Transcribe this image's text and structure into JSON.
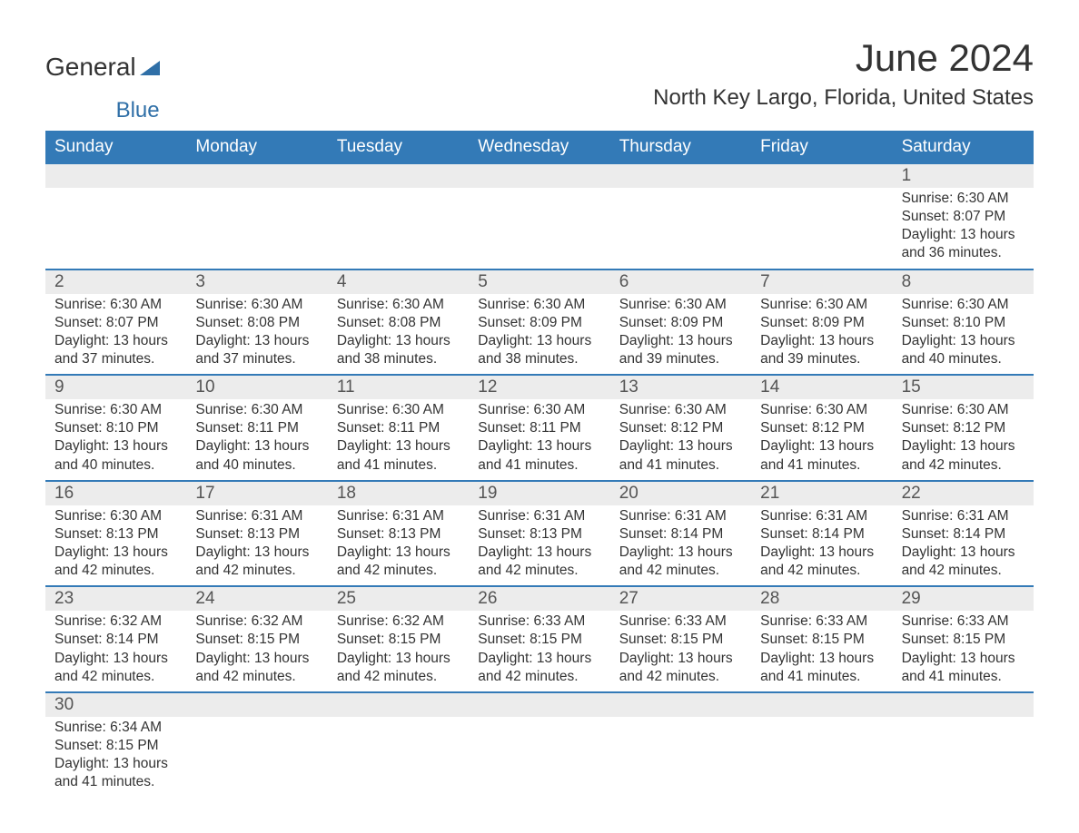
{
  "logo": {
    "text1": "General",
    "text2": "Blue"
  },
  "title": "June 2024",
  "subtitle": "North Key Largo, Florida, United States",
  "colors": {
    "header_bg": "#337ab7",
    "header_text": "#ffffff",
    "daynum_bg": "#ececec",
    "rule": "#337ab7",
    "text": "#333333",
    "logo_blue": "#2f6fa7"
  },
  "day_headers": [
    "Sunday",
    "Monday",
    "Tuesday",
    "Wednesday",
    "Thursday",
    "Friday",
    "Saturday"
  ],
  "weeks": [
    [
      {
        "n": "",
        "sunrise": "",
        "sunset": "",
        "daylight1": "",
        "daylight2": ""
      },
      {
        "n": "",
        "sunrise": "",
        "sunset": "",
        "daylight1": "",
        "daylight2": ""
      },
      {
        "n": "",
        "sunrise": "",
        "sunset": "",
        "daylight1": "",
        "daylight2": ""
      },
      {
        "n": "",
        "sunrise": "",
        "sunset": "",
        "daylight1": "",
        "daylight2": ""
      },
      {
        "n": "",
        "sunrise": "",
        "sunset": "",
        "daylight1": "",
        "daylight2": ""
      },
      {
        "n": "",
        "sunrise": "",
        "sunset": "",
        "daylight1": "",
        "daylight2": ""
      },
      {
        "n": "1",
        "sunrise": "Sunrise: 6:30 AM",
        "sunset": "Sunset: 8:07 PM",
        "daylight1": "Daylight: 13 hours",
        "daylight2": "and 36 minutes."
      }
    ],
    [
      {
        "n": "2",
        "sunrise": "Sunrise: 6:30 AM",
        "sunset": "Sunset: 8:07 PM",
        "daylight1": "Daylight: 13 hours",
        "daylight2": "and 37 minutes."
      },
      {
        "n": "3",
        "sunrise": "Sunrise: 6:30 AM",
        "sunset": "Sunset: 8:08 PM",
        "daylight1": "Daylight: 13 hours",
        "daylight2": "and 37 minutes."
      },
      {
        "n": "4",
        "sunrise": "Sunrise: 6:30 AM",
        "sunset": "Sunset: 8:08 PM",
        "daylight1": "Daylight: 13 hours",
        "daylight2": "and 38 minutes."
      },
      {
        "n": "5",
        "sunrise": "Sunrise: 6:30 AM",
        "sunset": "Sunset: 8:09 PM",
        "daylight1": "Daylight: 13 hours",
        "daylight2": "and 38 minutes."
      },
      {
        "n": "6",
        "sunrise": "Sunrise: 6:30 AM",
        "sunset": "Sunset: 8:09 PM",
        "daylight1": "Daylight: 13 hours",
        "daylight2": "and 39 minutes."
      },
      {
        "n": "7",
        "sunrise": "Sunrise: 6:30 AM",
        "sunset": "Sunset: 8:09 PM",
        "daylight1": "Daylight: 13 hours",
        "daylight2": "and 39 minutes."
      },
      {
        "n": "8",
        "sunrise": "Sunrise: 6:30 AM",
        "sunset": "Sunset: 8:10 PM",
        "daylight1": "Daylight: 13 hours",
        "daylight2": "and 40 minutes."
      }
    ],
    [
      {
        "n": "9",
        "sunrise": "Sunrise: 6:30 AM",
        "sunset": "Sunset: 8:10 PM",
        "daylight1": "Daylight: 13 hours",
        "daylight2": "and 40 minutes."
      },
      {
        "n": "10",
        "sunrise": "Sunrise: 6:30 AM",
        "sunset": "Sunset: 8:11 PM",
        "daylight1": "Daylight: 13 hours",
        "daylight2": "and 40 minutes."
      },
      {
        "n": "11",
        "sunrise": "Sunrise: 6:30 AM",
        "sunset": "Sunset: 8:11 PM",
        "daylight1": "Daylight: 13 hours",
        "daylight2": "and 41 minutes."
      },
      {
        "n": "12",
        "sunrise": "Sunrise: 6:30 AM",
        "sunset": "Sunset: 8:11 PM",
        "daylight1": "Daylight: 13 hours",
        "daylight2": "and 41 minutes."
      },
      {
        "n": "13",
        "sunrise": "Sunrise: 6:30 AM",
        "sunset": "Sunset: 8:12 PM",
        "daylight1": "Daylight: 13 hours",
        "daylight2": "and 41 minutes."
      },
      {
        "n": "14",
        "sunrise": "Sunrise: 6:30 AM",
        "sunset": "Sunset: 8:12 PM",
        "daylight1": "Daylight: 13 hours",
        "daylight2": "and 41 minutes."
      },
      {
        "n": "15",
        "sunrise": "Sunrise: 6:30 AM",
        "sunset": "Sunset: 8:12 PM",
        "daylight1": "Daylight: 13 hours",
        "daylight2": "and 42 minutes."
      }
    ],
    [
      {
        "n": "16",
        "sunrise": "Sunrise: 6:30 AM",
        "sunset": "Sunset: 8:13 PM",
        "daylight1": "Daylight: 13 hours",
        "daylight2": "and 42 minutes."
      },
      {
        "n": "17",
        "sunrise": "Sunrise: 6:31 AM",
        "sunset": "Sunset: 8:13 PM",
        "daylight1": "Daylight: 13 hours",
        "daylight2": "and 42 minutes."
      },
      {
        "n": "18",
        "sunrise": "Sunrise: 6:31 AM",
        "sunset": "Sunset: 8:13 PM",
        "daylight1": "Daylight: 13 hours",
        "daylight2": "and 42 minutes."
      },
      {
        "n": "19",
        "sunrise": "Sunrise: 6:31 AM",
        "sunset": "Sunset: 8:13 PM",
        "daylight1": "Daylight: 13 hours",
        "daylight2": "and 42 minutes."
      },
      {
        "n": "20",
        "sunrise": "Sunrise: 6:31 AM",
        "sunset": "Sunset: 8:14 PM",
        "daylight1": "Daylight: 13 hours",
        "daylight2": "and 42 minutes."
      },
      {
        "n": "21",
        "sunrise": "Sunrise: 6:31 AM",
        "sunset": "Sunset: 8:14 PM",
        "daylight1": "Daylight: 13 hours",
        "daylight2": "and 42 minutes."
      },
      {
        "n": "22",
        "sunrise": "Sunrise: 6:31 AM",
        "sunset": "Sunset: 8:14 PM",
        "daylight1": "Daylight: 13 hours",
        "daylight2": "and 42 minutes."
      }
    ],
    [
      {
        "n": "23",
        "sunrise": "Sunrise: 6:32 AM",
        "sunset": "Sunset: 8:14 PM",
        "daylight1": "Daylight: 13 hours",
        "daylight2": "and 42 minutes."
      },
      {
        "n": "24",
        "sunrise": "Sunrise: 6:32 AM",
        "sunset": "Sunset: 8:15 PM",
        "daylight1": "Daylight: 13 hours",
        "daylight2": "and 42 minutes."
      },
      {
        "n": "25",
        "sunrise": "Sunrise: 6:32 AM",
        "sunset": "Sunset: 8:15 PM",
        "daylight1": "Daylight: 13 hours",
        "daylight2": "and 42 minutes."
      },
      {
        "n": "26",
        "sunrise": "Sunrise: 6:33 AM",
        "sunset": "Sunset: 8:15 PM",
        "daylight1": "Daylight: 13 hours",
        "daylight2": "and 42 minutes."
      },
      {
        "n": "27",
        "sunrise": "Sunrise: 6:33 AM",
        "sunset": "Sunset: 8:15 PM",
        "daylight1": "Daylight: 13 hours",
        "daylight2": "and 42 minutes."
      },
      {
        "n": "28",
        "sunrise": "Sunrise: 6:33 AM",
        "sunset": "Sunset: 8:15 PM",
        "daylight1": "Daylight: 13 hours",
        "daylight2": "and 41 minutes."
      },
      {
        "n": "29",
        "sunrise": "Sunrise: 6:33 AM",
        "sunset": "Sunset: 8:15 PM",
        "daylight1": "Daylight: 13 hours",
        "daylight2": "and 41 minutes."
      }
    ],
    [
      {
        "n": "30",
        "sunrise": "Sunrise: 6:34 AM",
        "sunset": "Sunset: 8:15 PM",
        "daylight1": "Daylight: 13 hours",
        "daylight2": "and 41 minutes."
      },
      {
        "n": "",
        "sunrise": "",
        "sunset": "",
        "daylight1": "",
        "daylight2": ""
      },
      {
        "n": "",
        "sunrise": "",
        "sunset": "",
        "daylight1": "",
        "daylight2": ""
      },
      {
        "n": "",
        "sunrise": "",
        "sunset": "",
        "daylight1": "",
        "daylight2": ""
      },
      {
        "n": "",
        "sunrise": "",
        "sunset": "",
        "daylight1": "",
        "daylight2": ""
      },
      {
        "n": "",
        "sunrise": "",
        "sunset": "",
        "daylight1": "",
        "daylight2": ""
      },
      {
        "n": "",
        "sunrise": "",
        "sunset": "",
        "daylight1": "",
        "daylight2": ""
      }
    ]
  ]
}
